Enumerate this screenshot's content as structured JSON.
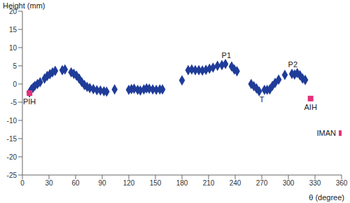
{
  "chart_data": {
    "type": "scatter",
    "x_label": "θ (degree)",
    "y_label": "Height (mm)",
    "xlim": [
      0,
      360
    ],
    "xticks": [
      0,
      30,
      60,
      90,
      120,
      150,
      180,
      210,
      240,
      270,
      300,
      330,
      360
    ],
    "ylim": [
      -25,
      20
    ],
    "yticks": [
      -25,
      -20,
      -15,
      -10,
      -5,
      0,
      5,
      10,
      15,
      20
    ],
    "grid": false,
    "series": [
      {
        "color": "#1f3c99",
        "marker": "diamond",
        "x": [
          8,
          10,
          12,
          14,
          17,
          20,
          25,
          28,
          31,
          34,
          37,
          45,
          48,
          55,
          58,
          61,
          64,
          67,
          70,
          73,
          76,
          80,
          84,
          88,
          92,
          95,
          104,
          120,
          123,
          126,
          130,
          133,
          137,
          140,
          143,
          147,
          151,
          155,
          158,
          180,
          187,
          191,
          195,
          199,
          203,
          207,
          211,
          215,
          220,
          225,
          229,
          236,
          239,
          242,
          258,
          261,
          264,
          267,
          273,
          276,
          279,
          282,
          285,
          289,
          296,
          304,
          307,
          310,
          313,
          316,
          319
        ],
        "y": [
          -2.3,
          -1.5,
          -1,
          -0.5,
          0,
          0.5,
          1.5,
          2.2,
          2.7,
          3.2,
          3.6,
          3.8,
          4,
          3.2,
          2.8,
          2.3,
          1.5,
          0.5,
          -0.3,
          -0.8,
          -1.1,
          -1.4,
          -1.7,
          -1.8,
          -2,
          -2.1,
          -1.5,
          -1.6,
          -1.4,
          -1.3,
          -1.6,
          -1.8,
          -1.5,
          -1.2,
          -1.3,
          -1.5,
          -1.6,
          -1.5,
          -1.5,
          1,
          3.8,
          4,
          3.8,
          3.8,
          3.7,
          3.9,
          4.2,
          4.5,
          5,
          5.2,
          5.5,
          4.8,
          4,
          3.5,
          0,
          -0.6,
          -1.2,
          -2,
          -1.6,
          -1.6,
          -1.5,
          -0.5,
          0.3,
          1.2,
          2.5,
          2.8,
          2.6,
          3,
          2.4,
          1.5,
          1.1
        ]
      },
      {
        "color": "#e6307a",
        "marker": "square",
        "x": [
          8,
          325,
          360
        ],
        "y": [
          -2.5,
          -4,
          -13.5
        ],
        "labels": [
          "PIH",
          "AIH",
          "IMAN"
        ]
      }
    ],
    "annotations": [
      {
        "text": "P1",
        "x": 230,
        "y": 5.5
      },
      {
        "text": "T",
        "x": 270,
        "y": -2
      },
      {
        "text": "P2",
        "x": 305,
        "y": 3
      }
    ]
  }
}
